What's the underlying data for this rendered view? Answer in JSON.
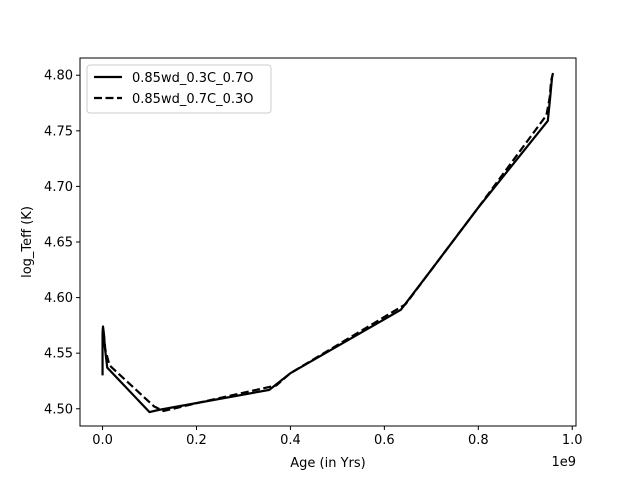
{
  "chart_data": {
    "type": "line",
    "title": "",
    "xlabel": "Age (in Yrs)",
    "ylabel": "log_Teff (K)",
    "x_offset_label": "1e9",
    "xlim": [
      -0.048,
      1.008
    ],
    "ylim": [
      4.4845,
      4.8155
    ],
    "xticks": [
      0.0,
      0.2,
      0.4,
      0.6,
      0.8,
      1.0
    ],
    "xtick_labels": [
      "0.0",
      "0.2",
      "0.4",
      "0.6",
      "0.8",
      "1.0"
    ],
    "yticks": [
      4.5,
      4.55,
      4.6,
      4.65,
      4.7,
      4.75,
      4.8
    ],
    "ytick_labels": [
      "4.50",
      "4.55",
      "4.60",
      "4.65",
      "4.70",
      "4.75",
      "4.80"
    ],
    "grid": false,
    "legend_position": "top-left",
    "series": [
      {
        "name": "0.85wd_0.3C_0.7O",
        "style": "solid",
        "color": "#000000",
        "x": [
          0.0,
          0.0,
          0.001,
          0.003,
          0.005,
          0.01,
          0.1,
          0.12,
          0.355,
          0.4,
          0.635,
          0.7,
          0.8,
          0.948,
          0.953,
          0.957,
          0.959
        ],
        "y": [
          4.53,
          4.568,
          4.574,
          4.567,
          4.555,
          4.537,
          4.497,
          4.499,
          4.517,
          4.532,
          4.589,
          4.625,
          4.681,
          4.759,
          4.78,
          4.798,
          4.802
        ]
      },
      {
        "name": "0.85wd_0.7C_0.3O",
        "style": "dashed",
        "color": "#000000",
        "x": [
          0.0,
          0.001,
          0.003,
          0.006,
          0.015,
          0.11,
          0.13,
          0.2,
          0.37,
          0.4,
          0.645,
          0.7,
          0.8,
          0.945,
          0.952,
          0.955,
          0.958
        ],
        "y": [
          4.565,
          4.572,
          4.566,
          4.553,
          4.539,
          4.502,
          4.498,
          4.505,
          4.521,
          4.532,
          4.594,
          4.625,
          4.681,
          4.764,
          4.78,
          4.795,
          4.8
        ]
      }
    ]
  }
}
